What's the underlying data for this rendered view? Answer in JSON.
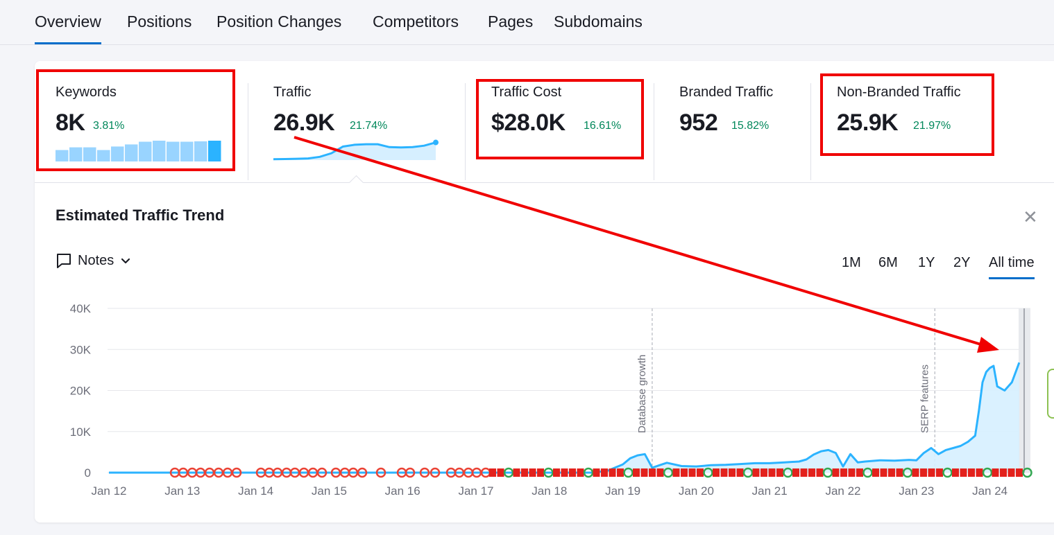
{
  "tabs": [
    {
      "label": "Overview",
      "active": true
    },
    {
      "label": "Positions",
      "active": false
    },
    {
      "label": "Position Changes",
      "active": false
    },
    {
      "label": "Competitors",
      "active": false
    },
    {
      "label": "Pages",
      "active": false
    },
    {
      "label": "Subdomains",
      "active": false
    }
  ],
  "metrics": [
    {
      "label": "Keywords",
      "value": "8K",
      "delta": "3.81%",
      "highlighted": true
    },
    {
      "label": "Traffic",
      "value": "26.9K",
      "delta": "21.74%",
      "highlighted": false
    },
    {
      "label": "Traffic Cost",
      "value": "$28.0K",
      "delta": "16.61%",
      "highlighted": true
    },
    {
      "label": "Branded Traffic",
      "value": "952",
      "delta": "15.82%",
      "highlighted": false
    },
    {
      "label": "Non-Branded Traffic",
      "value": "25.9K",
      "delta": "21.97%",
      "highlighted": true
    }
  ],
  "keywords_sparkline": [
    0.55,
    0.68,
    0.68,
    0.55,
    0.72,
    0.82,
    0.95,
    1.0,
    0.95,
    0.95,
    0.97,
    1.0
  ],
  "traffic_sparkline": [
    0.05,
    0.06,
    0.07,
    0.09,
    0.18,
    0.38,
    0.75,
    0.85,
    0.88,
    0.88,
    0.72,
    0.7,
    0.72,
    0.8,
    0.98
  ],
  "panel": {
    "title": "Estimated Traffic Trend",
    "close_icon": "close-icon",
    "notes_label": "Notes",
    "ranges": [
      {
        "label": "1M",
        "active": false
      },
      {
        "label": "6M",
        "active": false
      },
      {
        "label": "1Y",
        "active": false
      },
      {
        "label": "2Y",
        "active": false
      },
      {
        "label": "All time",
        "active": true
      }
    ]
  },
  "colors": {
    "accent": "#006dca",
    "series": "#2bb3ff",
    "fill": "#d6efff",
    "positive": "#00875a",
    "highlight": "#f00000"
  },
  "chart_data": {
    "type": "area",
    "title": "Estimated Traffic Trend",
    "x_ticks": [
      "Jan 12",
      "Jan 13",
      "Jan 14",
      "Jan 15",
      "Jan 16",
      "Jan 17",
      "Jan 18",
      "Jan 19",
      "Jan 20",
      "Jan 21",
      "Jan 22",
      "Jan 23",
      "Jan 24"
    ],
    "y_ticks": [
      "0",
      "10K",
      "20K",
      "30K",
      "40K"
    ],
    "ylim": [
      0,
      40000
    ],
    "xlim": [
      2012.0,
      2024.6
    ],
    "grid": true,
    "annotations": [
      {
        "label": "Database growth",
        "x": 2019.4
      },
      {
        "label": "SERP features",
        "x": 2023.25
      }
    ],
    "series": [
      {
        "x": [
          2012.0,
          2012.5,
          2013.0,
          2013.5,
          2014.0,
          2014.5,
          2015.0,
          2015.5,
          2016.0,
          2016.5,
          2017.0,
          2017.5,
          2018.0,
          2018.3,
          2018.6,
          2018.8,
          2019.0,
          2019.1,
          2019.2,
          2019.3,
          2019.4,
          2019.5,
          2019.6,
          2019.8,
          2020.0,
          2020.2,
          2020.4,
          2020.6,
          2020.8,
          2021.0,
          2021.2,
          2021.4,
          2021.5,
          2021.6,
          2021.7,
          2021.8,
          2021.9,
          2022.0,
          2022.1,
          2022.2,
          2022.3,
          2022.5,
          2022.7,
          2022.9,
          2023.0,
          2023.1,
          2023.2,
          2023.3,
          2023.4,
          2023.5,
          2023.6,
          2023.7,
          2023.8,
          2023.85,
          2023.9,
          2023.95,
          2024.0,
          2024.05,
          2024.1,
          2024.2,
          2024.3,
          2024.4
        ],
        "y": [
          0,
          0,
          0,
          0,
          0,
          0,
          0,
          0,
          0,
          0,
          0,
          0,
          0,
          0,
          0,
          500,
          2000,
          3500,
          4200,
          4500,
          1200,
          1800,
          2400,
          1600,
          1500,
          1800,
          1900,
          2100,
          2300,
          2300,
          2500,
          2700,
          3200,
          4400,
          5200,
          5500,
          4800,
          1500,
          4500,
          2500,
          2700,
          3000,
          2900,
          3100,
          3000,
          4800,
          6000,
          4500,
          5500,
          6000,
          6500,
          7500,
          9000,
          15000,
          22000,
          24500,
          25500,
          26000,
          21000,
          20000,
          22000,
          26800
        ]
      }
    ]
  }
}
